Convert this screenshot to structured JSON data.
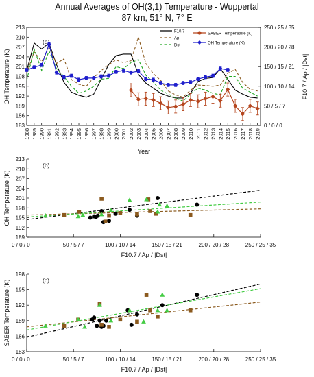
{
  "figure": {
    "title_line1": "Annual Averages of OH(3,1) Temperature - Wuppertal",
    "title_line2": "87 km, 51° N, 7° E"
  },
  "chart_data": [
    {
      "panel": "(a)",
      "type": "line",
      "xlabel": "Year",
      "ylabel": "OH Temperature (K)",
      "ylabel_right": "F10.7 / Ap / |Dst|",
      "ylim": [
        183,
        213
      ],
      "yticks": [
        "183",
        "186",
        "189",
        "192",
        "195",
        "198",
        "201",
        "204",
        "207",
        "210",
        "213"
      ],
      "yticks_right": [
        "0 / 0 / 0",
        "50 / 5 / 7",
        "100 / 10 / 14",
        "150 / 15 / 21",
        "200 / 20 / 28",
        "250 / 25 / 35"
      ],
      "xticks": [
        "1988",
        "1989",
        "1990",
        "1991",
        "1992",
        "1993",
        "1994",
        "1995",
        "1996",
        "1997",
        "1998",
        "1999",
        "2000",
        "2001",
        "2002",
        "2003",
        "2004",
        "2005",
        "2006",
        "2007",
        "2008",
        "2009",
        "2010",
        "2011",
        "2012",
        "2013",
        "2014",
        "2015",
        "2016",
        "2017",
        "2018",
        "2019"
      ],
      "legend": [
        "F10.7",
        "Ap",
        "Dst",
        "SABER Temperature (K)",
        "OH Temperature (K)"
      ],
      "series": [
        {
          "name": "F10.7",
          "color": "#000000",
          "style": "solid",
          "axis": "right",
          "x": [
            1988,
            1989,
            1990,
            1991,
            1992,
            1993,
            1994,
            1995,
            1996,
            1997,
            1998,
            1999,
            2000,
            2001,
            2002,
            2003,
            2004,
            2005,
            2006,
            2007,
            2008,
            2009,
            2010,
            2011,
            2012,
            2013,
            2014,
            2015,
            2016,
            2017,
            2018,
            2019
          ],
          "values": [
            140,
            210,
            195,
            210,
            155,
            110,
            85,
            77,
            72,
            80,
            118,
            155,
            178,
            182,
            182,
            130,
            108,
            95,
            82,
            75,
            70,
            70,
            82,
            112,
            120,
            122,
            145,
            118,
            90,
            80,
            72,
            70
          ]
        },
        {
          "name": "Ap",
          "color": "#8b5a1e",
          "style": "dashed",
          "axis": "right",
          "x": [
            1988,
            1989,
            1990,
            1991,
            1992,
            1993,
            1994,
            1995,
            1996,
            1997,
            1998,
            1999,
            2000,
            2001,
            2002,
            2003,
            2004,
            2005,
            2006,
            2007,
            2008,
            2009,
            2010,
            2011,
            2012,
            2013,
            2014,
            2015,
            2016,
            2017,
            2018,
            2019
          ],
          "values": [
            133,
            188,
            163,
            198,
            158,
            170,
            117,
            105,
            100,
            122,
            140,
            155,
            167,
            160,
            165,
            225,
            158,
            132,
            115,
            88,
            78,
            72,
            90,
            103,
            102,
            100,
            103,
            133,
            143,
            110,
            92,
            88
          ]
        },
        {
          "name": "Dst",
          "color": "#22a822",
          "style": "dashed",
          "axis": "right",
          "x": [
            1988,
            1989,
            1990,
            1991,
            1992,
            1993,
            1994,
            1995,
            1996,
            1997,
            1998,
            1999,
            2000,
            2001,
            2002,
            2003,
            2004,
            2005,
            2006,
            2007,
            2008,
            2009,
            2010,
            2011,
            2012,
            2013,
            2014,
            2015,
            2016,
            2017,
            2018,
            2019
          ],
          "values": [
            115,
            195,
            140,
            190,
            145,
            125,
            100,
            82,
            88,
            100,
            118,
            120,
            150,
            145,
            160,
            168,
            128,
            110,
            90,
            80,
            70,
            62,
            80,
            95,
            90,
            82,
            78,
            125,
            125,
            95,
            85,
            75
          ]
        },
        {
          "name": "OH Temperature (K)",
          "color": "#1f1fcc",
          "style": "solid",
          "axis": "left",
          "x": [
            1988,
            1989,
            1990,
            1991,
            1992,
            1993,
            1994,
            1995,
            1996,
            1997,
            1998,
            1999,
            2000,
            2001,
            2002,
            2003,
            2004,
            2005,
            2006,
            2007,
            2008,
            2009,
            2010,
            2011,
            2012,
            2013,
            2014,
            2015
          ],
          "values": [
            200.0,
            200.8,
            201.5,
            207.8,
            199.2,
            197.8,
            198.2,
            197.0,
            197.5,
            197.5,
            198.0,
            198.2,
            199.4,
            199.8,
            199.2,
            199.6,
            197.2,
            197.0,
            196.0,
            195.4,
            195.4,
            196.0,
            196.2,
            197.2,
            197.8,
            198.2,
            200.4,
            200.0
          ]
        },
        {
          "name": "SABER Temperature (K)",
          "color": "#b5461e",
          "style": "solid",
          "axis": "left",
          "x": [
            2002,
            2003,
            2004,
            2005,
            2006,
            2007,
            2008,
            2009,
            2010,
            2011,
            2012,
            2013,
            2014,
            2015,
            2016,
            2017,
            2018,
            2019
          ],
          "values": [
            193.8,
            191.0,
            191.2,
            190.8,
            189.8,
            188.5,
            188.8,
            189.5,
            190.8,
            190.4,
            191.2,
            191.8,
            190.6,
            194.0,
            189.0,
            186.5,
            189.0,
            188.2
          ]
        }
      ]
    },
    {
      "panel": "(b)",
      "type": "scatter",
      "xlabel": "F10.7 / Ap / |Dst|",
      "ylabel": "OH Temperature (K)",
      "ylim": [
        189,
        213
      ],
      "yticks": [
        "189",
        "192",
        "195",
        "198",
        "201",
        "204",
        "207",
        "210",
        "213"
      ],
      "xticks": [
        "0 / 0 / 0",
        "50 / 5 / 7",
        "100 / 10 / 14",
        "150 / 15 / 21",
        "200 / 20 / 28",
        "250 / 25 / 35"
      ],
      "series": [
        {
          "name": "F10.7",
          "color": "#000000",
          "marker": "circle",
          "x": [
            68,
            72,
            74,
            76,
            80,
            82,
            88,
            95,
            110,
            118,
            140,
            182
          ],
          "values": [
            195.0,
            195.4,
            195.2,
            195.6,
            197.0,
            193.6,
            194.0,
            196.2,
            197.4,
            195.6,
            201.0,
            199.0
          ]
        },
        {
          "name": "Ap",
          "color": "#8b5a1e",
          "marker": "square",
          "x": [
            40,
            56,
            80,
            84,
            88,
            100,
            118,
            130,
            132,
            138,
            175
          ],
          "values": [
            195.8,
            196.8,
            200.8,
            193.8,
            195.6,
            196.4,
            196.0,
            200.6,
            197.0,
            196.2,
            195.8
          ]
        },
        {
          "name": "Dst",
          "color": "#44cc44",
          "marker": "triangle",
          "x": [
            20,
            55,
            60,
            80,
            90,
            110,
            128,
            140,
            142,
            150
          ],
          "values": [
            195.6,
            195.4,
            195.8,
            196.0,
            197.2,
            200.4,
            200.6,
            196.8,
            199.0,
            198.6
          ]
        }
      ],
      "fits": [
        {
          "name": "F10.7",
          "color": "#000000",
          "x": [
            0,
            250
          ],
          "values": [
            194.4,
            203.4
          ]
        },
        {
          "name": "Ap",
          "color": "#8b5a1e",
          "x": [
            0,
            250
          ],
          "values": [
            195.8,
            197.7
          ]
        },
        {
          "name": "Dst",
          "color": "#44cc44",
          "x": [
            0,
            250
          ],
          "values": [
            195.2,
            199.8
          ]
        }
      ]
    },
    {
      "panel": "(c)",
      "type": "scatter",
      "xlabel": "F10.7 / Ap / |Dst|",
      "ylabel": "SABER Temperature (K)",
      "ylim": [
        183,
        198
      ],
      "yticks": [
        "183",
        "186",
        "189",
        "192",
        "195",
        "198"
      ],
      "xticks": [
        "0 / 0 / 0",
        "50 / 5 / 7",
        "100 / 10 / 14",
        "150 / 15 / 21",
        "200 / 20 / 28",
        "250 / 25 / 35"
      ],
      "series": [
        {
          "name": "F10.7",
          "color": "#000000",
          "marker": "circle",
          "x": [
            70,
            72,
            75,
            78,
            80,
            82,
            85,
            108,
            112,
            118,
            145,
            182
          ],
          "values": [
            189.2,
            189.6,
            188.0,
            189.0,
            187.8,
            188.0,
            189.0,
            191.0,
            188.2,
            190.2,
            192.0,
            194.0
          ]
        },
        {
          "name": "Ap",
          "color": "#8b5a1e",
          "marker": "square",
          "x": [
            40,
            55,
            78,
            80,
            88,
            100,
            118,
            128,
            132,
            140,
            175
          ],
          "values": [
            188.0,
            189.2,
            192.2,
            188.2,
            187.8,
            189.2,
            188.8,
            194.0,
            191.0,
            189.8,
            191.0
          ]
        },
        {
          "name": "Dst",
          "color": "#44cc44",
          "marker": "triangle",
          "x": [
            20,
            55,
            62,
            78,
            90,
            110,
            125,
            140,
            145,
            150
          ],
          "values": [
            188.0,
            189.2,
            187.8,
            192.0,
            189.0,
            191.0,
            188.8,
            191.0,
            194.0,
            191.0
          ]
        }
      ],
      "fits": [
        {
          "name": "F10.7",
          "color": "#000000",
          "x": [
            0,
            250
          ],
          "values": [
            185.8,
            196.1
          ]
        },
        {
          "name": "Ap",
          "color": "#8b5a1e",
          "x": [
            0,
            250
          ],
          "values": [
            187.8,
            192.6
          ]
        },
        {
          "name": "Dst",
          "color": "#44cc44",
          "x": [
            0,
            250
          ],
          "values": [
            187.2,
            195.2
          ]
        }
      ]
    }
  ]
}
